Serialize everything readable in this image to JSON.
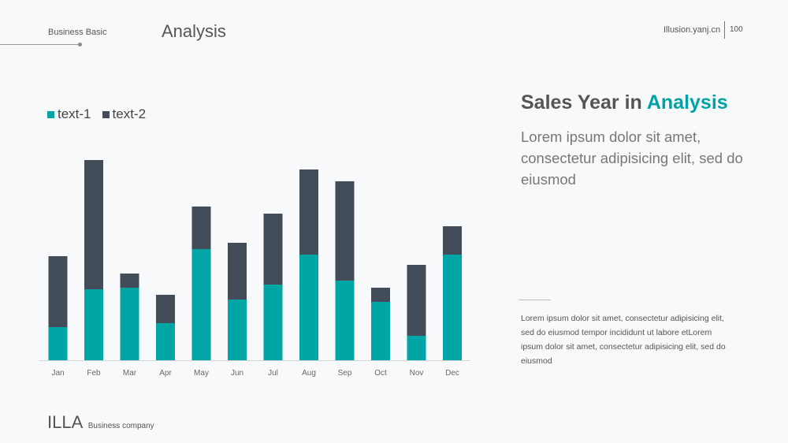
{
  "header": {
    "label": "Business Basic",
    "title": "Analysis",
    "site": "Illusion.yanj.cn",
    "page_number": "100"
  },
  "chart_data": {
    "type": "bar",
    "stacked": true,
    "categories": [
      "Jan",
      "Feb",
      "Mar",
      "Apr",
      "May",
      "Jun",
      "Jul",
      "Aug",
      "Sep",
      "Oct",
      "Nov",
      "Dec"
    ],
    "series": [
      {
        "name": "text-1",
        "color": "#00a5a5",
        "values": [
          42,
          90,
          92,
          47,
          141,
          77,
          96,
          134,
          101,
          74,
          31,
          134
        ]
      },
      {
        "name": "text-2",
        "color": "#434d5a",
        "values": [
          90,
          164,
          18,
          36,
          54,
          72,
          90,
          108,
          126,
          18,
          90,
          36
        ]
      }
    ],
    "ylim": [
      0,
      270
    ],
    "grid": false,
    "legend": "top-left"
  },
  "side": {
    "title_main": "Sales Year in ",
    "title_accent": "Analysis",
    "subtitle": "Lorem ipsum dolor sit amet, consectetur adipisicing elit, sed do eiusmod",
    "body": "Lorem ipsum dolor sit amet, consectetur adipisicing elit, sed do eiusmod tempor incididunt ut labore etLorem ipsum dolor sit amet, consectetur adipisicing elit, sed do eiusmod"
  },
  "footer": {
    "brand": "ILLA",
    "sub": "Business company"
  }
}
